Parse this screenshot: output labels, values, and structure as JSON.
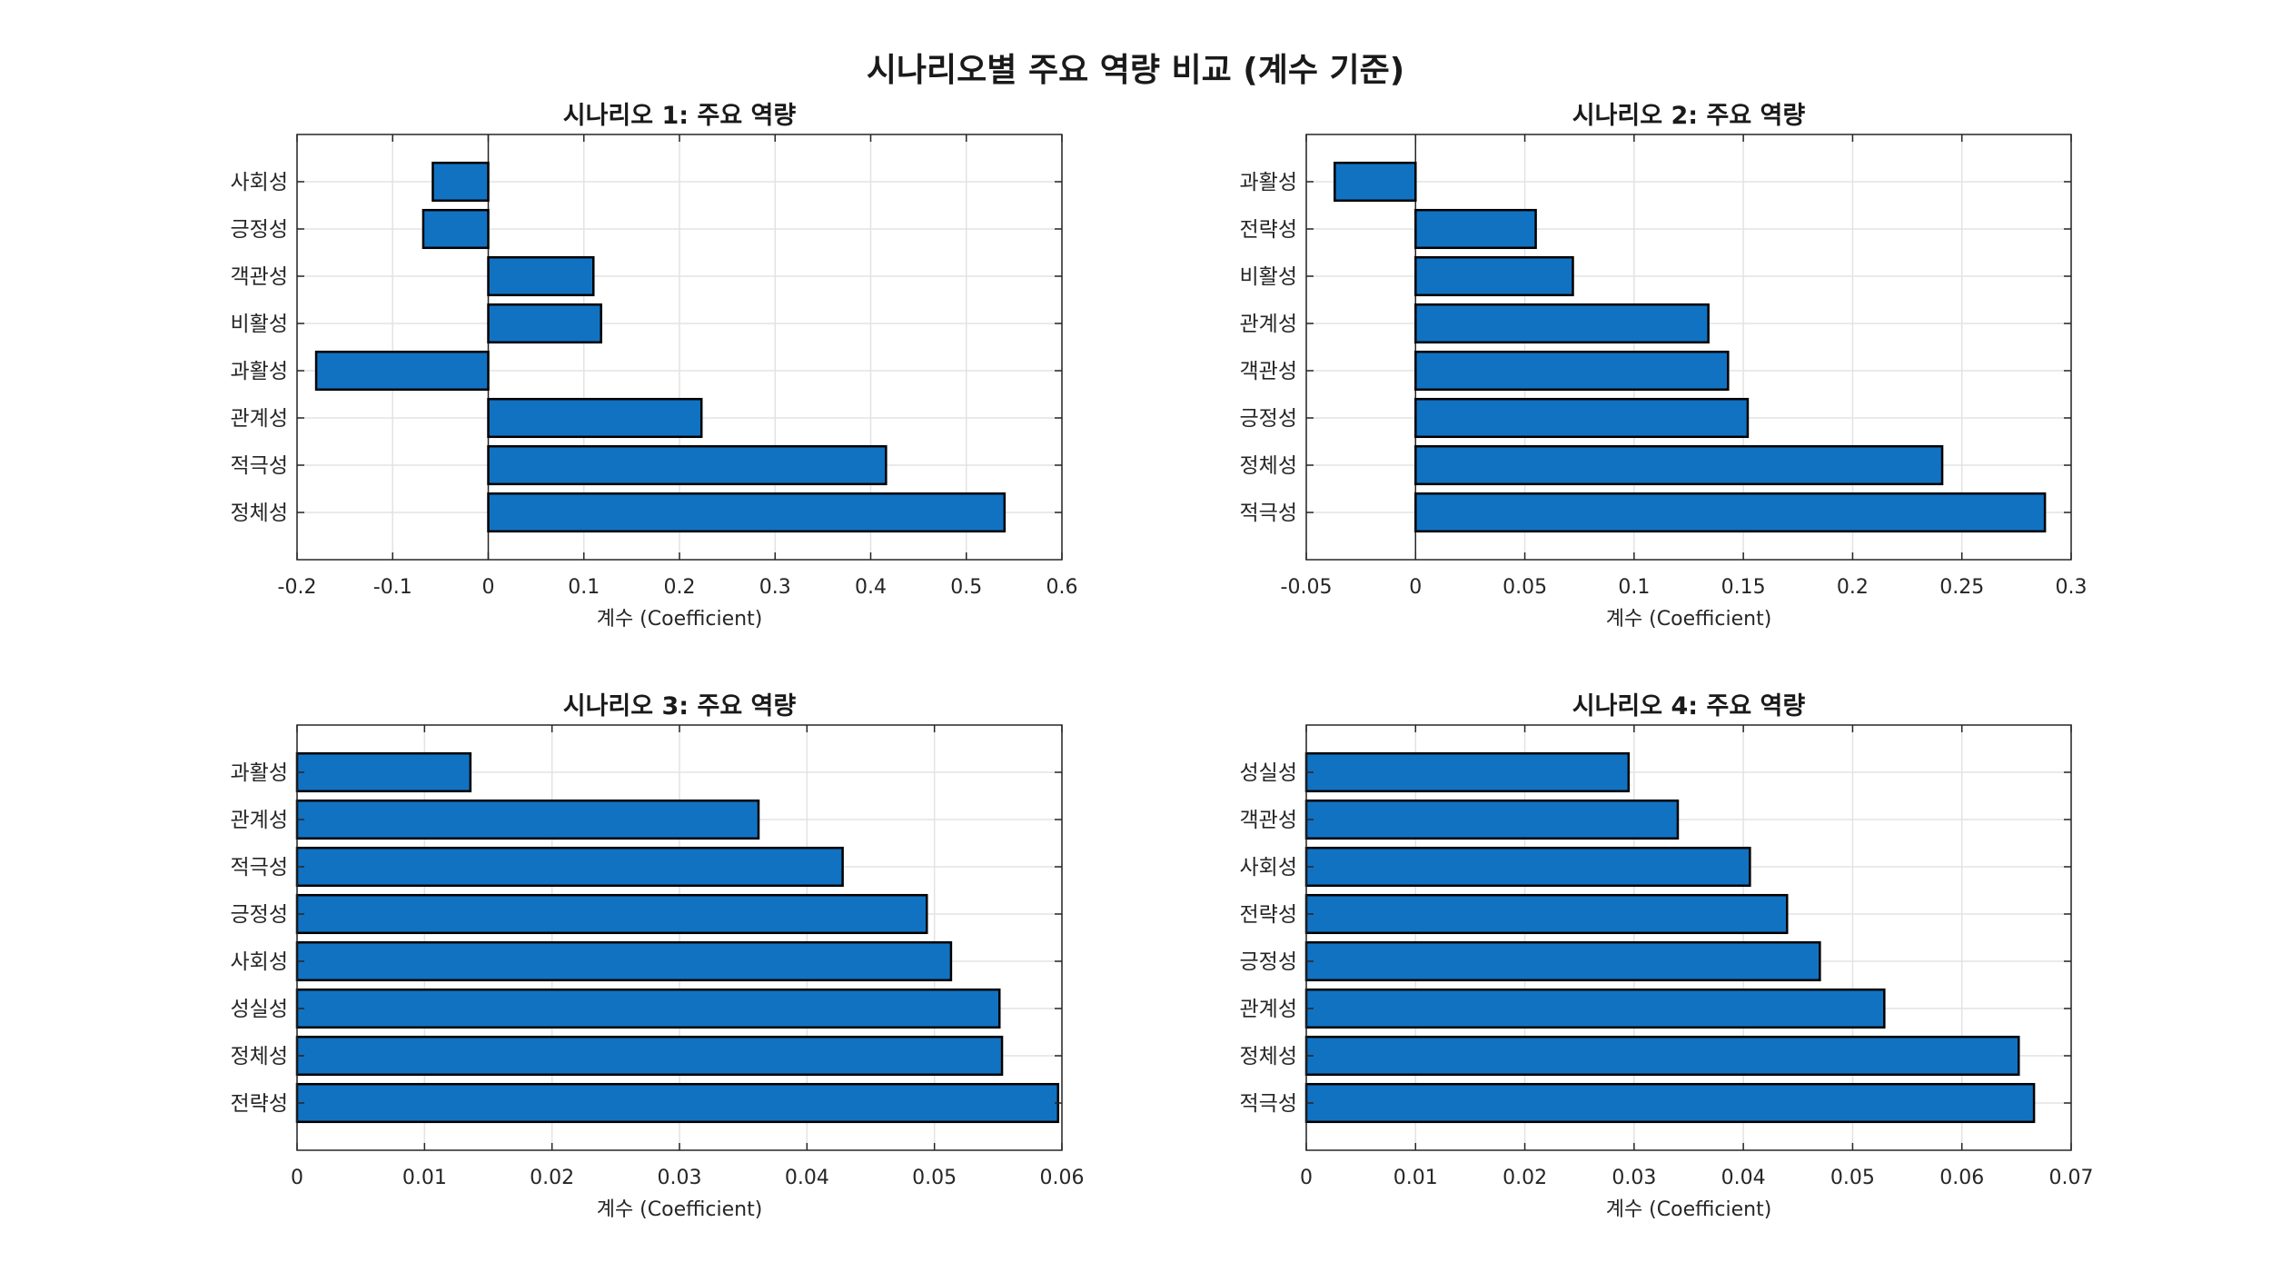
{
  "figure": {
    "title": "시나리오별 주요 역량 비교 (계수 기준)",
    "bar_color": "#1272c2",
    "bar_edge_color": "#000000",
    "grid_color": "#e3e3e3",
    "axis_color": "#262626"
  },
  "chart_data": [
    {
      "type": "bar",
      "orientation": "horizontal",
      "title": "시나리오 1: 주요 역량",
      "xlabel": "계수 (Coefficient)",
      "ylabel": "",
      "categories": [
        "사회성",
        "긍정성",
        "객관성",
        "비활성",
        "과활성",
        "관계성",
        "적극성",
        "정체성"
      ],
      "values": [
        -0.058,
        -0.068,
        0.11,
        0.118,
        -0.18,
        0.223,
        0.416,
        0.54
      ],
      "xlim": [
        -0.2,
        0.6
      ],
      "xticks": [
        -0.2,
        -0.1,
        0,
        0.1,
        0.2,
        0.3,
        0.4,
        0.5,
        0.6
      ],
      "xtick_labels": [
        "-0.2",
        "-0.1",
        "0",
        "0.1",
        "0.2",
        "0.3",
        "0.4",
        "0.5",
        "0.6"
      ],
      "grid": true
    },
    {
      "type": "bar",
      "orientation": "horizontal",
      "title": "시나리오 2: 주요 역량",
      "xlabel": "계수 (Coefficient)",
      "ylabel": "",
      "categories": [
        "과활성",
        "전략성",
        "비활성",
        "관계성",
        "객관성",
        "긍정성",
        "정체성",
        "적극성"
      ],
      "values": [
        -0.037,
        0.055,
        0.072,
        0.134,
        0.143,
        0.152,
        0.241,
        0.288
      ],
      "xlim": [
        -0.05,
        0.3
      ],
      "xticks": [
        -0.05,
        0,
        0.05,
        0.1,
        0.15,
        0.2,
        0.25,
        0.3
      ],
      "xtick_labels": [
        "-0.05",
        "0",
        "0.05",
        "0.1",
        "0.15",
        "0.2",
        "0.25",
        "0.3"
      ],
      "grid": true
    },
    {
      "type": "bar",
      "orientation": "horizontal",
      "title": "시나리오 3: 주요 역량",
      "xlabel": "계수 (Coefficient)",
      "ylabel": "",
      "categories": [
        "과활성",
        "관계성",
        "적극성",
        "긍정성",
        "사회성",
        "성실성",
        "정체성",
        "전략성"
      ],
      "values": [
        0.0136,
        0.0362,
        0.0428,
        0.0494,
        0.0513,
        0.0551,
        0.0553,
        0.0597
      ],
      "xlim": [
        0,
        0.06
      ],
      "xticks": [
        0,
        0.01,
        0.02,
        0.03,
        0.04,
        0.05,
        0.06
      ],
      "xtick_labels": [
        "0",
        "0.01",
        "0.02",
        "0.03",
        "0.04",
        "0.05",
        "0.06"
      ],
      "grid": true
    },
    {
      "type": "bar",
      "orientation": "horizontal",
      "title": "시나리오 4: 주요 역량",
      "xlabel": "계수 (Coefficient)",
      "ylabel": "",
      "categories": [
        "성실성",
        "객관성",
        "사회성",
        "전략성",
        "긍정성",
        "관계성",
        "정체성",
        "적극성"
      ],
      "values": [
        0.0295,
        0.034,
        0.0406,
        0.044,
        0.047,
        0.0529,
        0.0652,
        0.0666
      ],
      "xlim": [
        0,
        0.07
      ],
      "xticks": [
        0,
        0.01,
        0.02,
        0.03,
        0.04,
        0.05,
        0.06,
        0.07
      ],
      "xtick_labels": [
        "0",
        "0.01",
        "0.02",
        "0.03",
        "0.04",
        "0.05",
        "0.06",
        "0.07"
      ],
      "grid": true
    }
  ]
}
